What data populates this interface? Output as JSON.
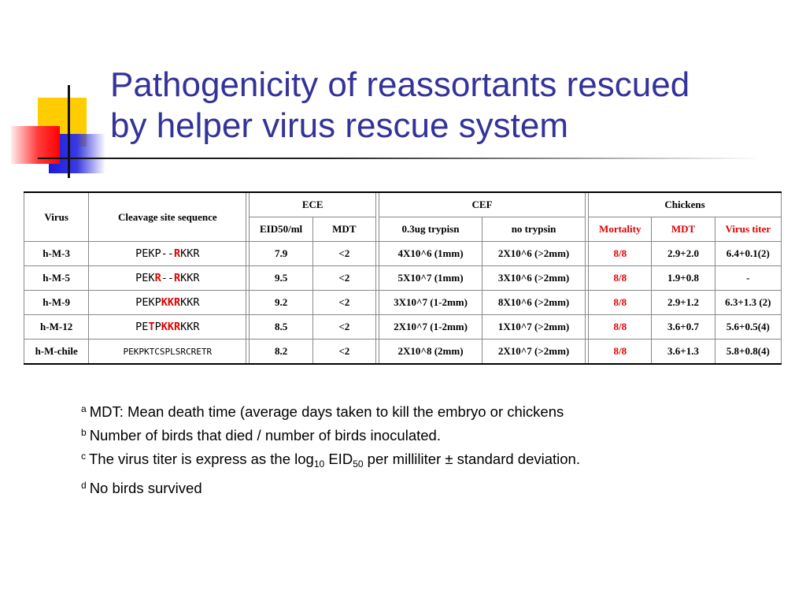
{
  "title": {
    "line1": "Pathogenicity of reassortants rescued",
    "line2": "by helper virus rescue system"
  },
  "table": {
    "headers": {
      "virus": "Virus",
      "cleavage": "Cleavage site sequence",
      "ece": "ECE",
      "cef": "CEF",
      "chickens": "Chickens",
      "eid50": "EID50/ml",
      "mdt": "MDT",
      "trypsin": "0.3ug trypisn",
      "no_trypsin": "no trypsin",
      "mortality": "Mortality",
      "mdt2": "MDT",
      "virus_titer": "Virus titer"
    },
    "rows": [
      {
        "virus": "h-M-3",
        "seq": [
          [
            "PEKP--",
            false
          ],
          [
            "R",
            true
          ],
          [
            "KKR",
            false
          ]
        ],
        "eid50": "7.9",
        "mdt": "<2",
        "trypsin": "4X10^6 (1mm)",
        "no_trypsin": "2X10^6 (>2mm)",
        "mortality": "8/8",
        "mdt2": "2.9+2.0",
        "titer": "6.4+0.1(2)"
      },
      {
        "virus": "h-M-5",
        "seq": [
          [
            "PEK",
            false
          ],
          [
            "R",
            true
          ],
          [
            "--",
            false
          ],
          [
            "R",
            true
          ],
          [
            "KKR",
            false
          ]
        ],
        "eid50": "9.5",
        "mdt": "<2",
        "trypsin": "5X10^7 (1mm)",
        "no_trypsin": "3X10^6 (>2mm)",
        "mortality": "8/8",
        "mdt2": "1.9+0.8",
        "titer": "-"
      },
      {
        "virus": "h-M-9",
        "seq": [
          [
            "PEKP",
            false
          ],
          [
            "KKR",
            true
          ],
          [
            "KKR",
            false
          ]
        ],
        "eid50": "9.2",
        "mdt": "<2",
        "trypsin": "3X10^7 (1-2mm)",
        "no_trypsin": "8X10^6 (>2mm)",
        "mortality": "8/8",
        "mdt2": "2.9+1.2",
        "titer": "6.3+1.3 (2)"
      },
      {
        "virus": "h-M-12",
        "seq": [
          [
            "PE",
            false
          ],
          [
            "T",
            true
          ],
          [
            "P",
            false
          ],
          [
            "KKR",
            true
          ],
          [
            "KKR",
            false
          ]
        ],
        "eid50": "8.5",
        "mdt": "<2",
        "trypsin": "2X10^7 (1-2mm)",
        "no_trypsin": "1X10^7 (>2mm)",
        "mortality": "8/8",
        "mdt2": "3.6+0.7",
        "titer": "5.6+0.5(4)"
      },
      {
        "virus": "h-M-chile",
        "seq": [
          [
            "PEKPKTCSPLSRCRETR",
            false
          ]
        ],
        "eid50": "8.2",
        "mdt": "<2",
        "trypsin": "2X10^8 (2mm)",
        "no_trypsin": "2X10^7 (>2mm)",
        "mortality": "8/8",
        "mdt2": "3.6+1.3",
        "titer": "5.8+0.8(4)"
      }
    ]
  },
  "notes": [
    {
      "mark": "a",
      "text": "MDT: Mean death time (average days taken to kill the embryo or chickens"
    },
    {
      "mark": "b",
      "text": "Number of birds that died / number of birds inoculated."
    },
    {
      "mark": "c",
      "pre": "The virus titer is express as the log",
      "sub1": "10",
      "mid": " EID",
      "sub2": "50",
      "post": " per milliliter ± standard deviation."
    },
    {
      "mark": "d",
      "text": "No birds survived"
    }
  ],
  "colors": {
    "title": "#333399",
    "highlight": "#e00000",
    "deco_yellow": "#ffcc00",
    "deco_blue": "#1a1add",
    "deco_red": "#ff0000"
  }
}
